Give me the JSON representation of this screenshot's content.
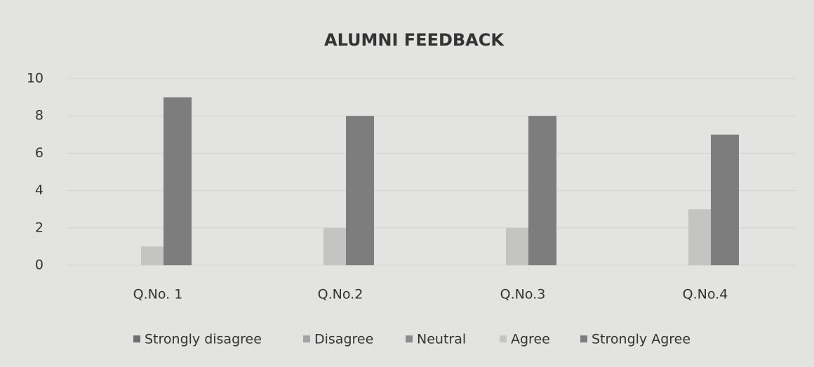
{
  "chart_data": {
    "type": "bar",
    "title": "ALUMNI FEEDBACK",
    "categories": [
      "Q.No. 1",
      "Q.No.2",
      "Q.No.3",
      "Q.No.4"
    ],
    "series": [
      {
        "name": "Strongly disagree",
        "color": "#6e6e6e",
        "values": [
          0,
          0,
          0,
          0
        ]
      },
      {
        "name": "Disagree",
        "color": "#a3a3a3",
        "values": [
          0,
          0,
          0,
          0
        ]
      },
      {
        "name": "Neutral",
        "color": "#8c8c8c",
        "values": [
          0,
          0,
          0,
          0
        ]
      },
      {
        "name": "Agree",
        "color": "#c4c4c2",
        "values": [
          1,
          2,
          2,
          3
        ]
      },
      {
        "name": "Strongly Agree",
        "color": "#7d7d7d",
        "values": [
          9,
          8,
          8,
          7
        ]
      }
    ],
    "ylim": [
      0,
      10
    ],
    "yticks": [
      0,
      2,
      4,
      6,
      8,
      10
    ],
    "grid": true,
    "legend": "bottom"
  }
}
